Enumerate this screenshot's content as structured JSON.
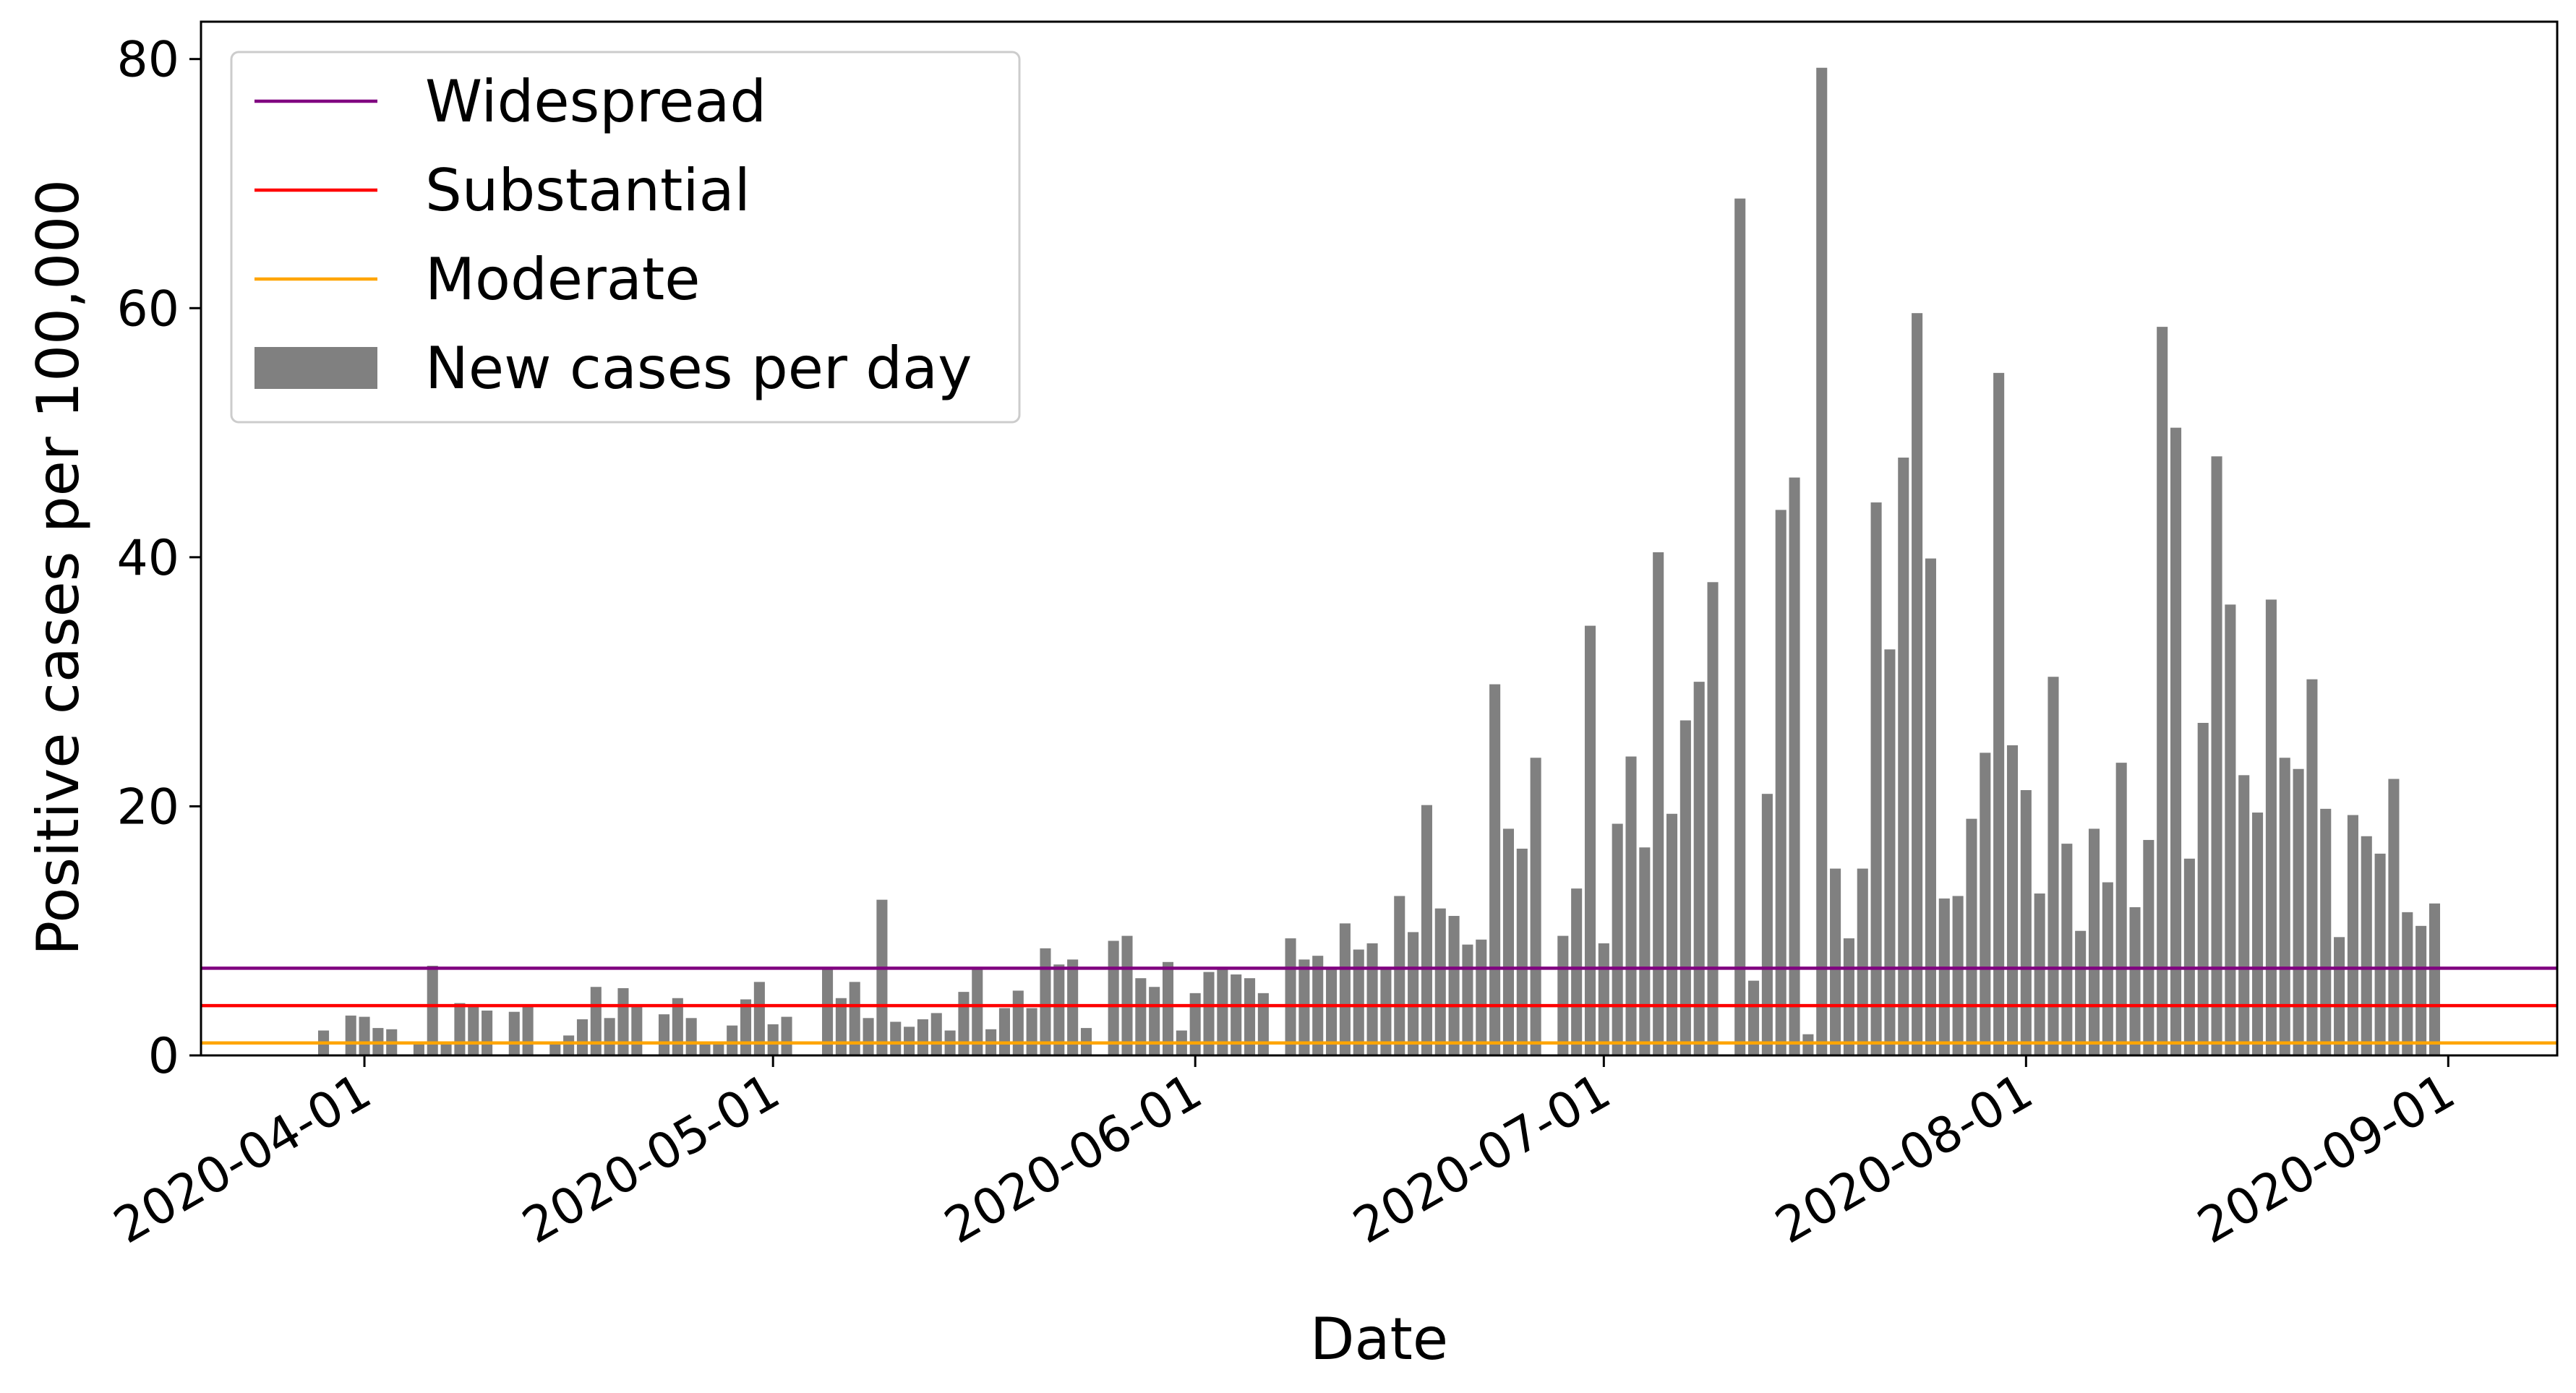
{
  "chart_data": {
    "type": "bar",
    "xlabel": "Date",
    "ylabel": "Positive cases per 100,000",
    "xlim": [
      "2020-03-20",
      "2020-09-09"
    ],
    "ylim": [
      0,
      83
    ],
    "x_ticks": [
      "2020-04-01",
      "2020-05-01",
      "2020-06-01",
      "2020-07-01",
      "2020-08-01",
      "2020-09-01"
    ],
    "y_ticks": [
      0,
      20,
      40,
      60,
      80
    ],
    "grid": false,
    "legend_position": "top-left",
    "series": [
      {
        "name": "New cases per day",
        "type": "bar",
        "color": "#808080",
        "points": [
          [
            "2020-03-29",
            2.0
          ],
          [
            "2020-03-31",
            3.2
          ],
          [
            "2020-04-01",
            3.1
          ],
          [
            "2020-04-02",
            2.2
          ],
          [
            "2020-04-03",
            2.1
          ],
          [
            "2020-04-05",
            0.9
          ],
          [
            "2020-04-06",
            7.2
          ],
          [
            "2020-04-07",
            1.1
          ],
          [
            "2020-04-08",
            4.2
          ],
          [
            "2020-04-09",
            4.0
          ],
          [
            "2020-04-10",
            3.6
          ],
          [
            "2020-04-12",
            3.5
          ],
          [
            "2020-04-13",
            3.9
          ],
          [
            "2020-04-15",
            0.9
          ],
          [
            "2020-04-16",
            1.6
          ],
          [
            "2020-04-17",
            2.9
          ],
          [
            "2020-04-18",
            5.5
          ],
          [
            "2020-04-19",
            3.0
          ],
          [
            "2020-04-20",
            5.4
          ],
          [
            "2020-04-21",
            3.9
          ],
          [
            "2020-04-23",
            3.3
          ],
          [
            "2020-04-24",
            4.6
          ],
          [
            "2020-04-25",
            3.0
          ],
          [
            "2020-04-26",
            1.0
          ],
          [
            "2020-04-27",
            1.0
          ],
          [
            "2020-04-28",
            2.4
          ],
          [
            "2020-04-29",
            4.5
          ],
          [
            "2020-04-30",
            5.9
          ],
          [
            "2020-05-01",
            2.5
          ],
          [
            "2020-05-02",
            3.1
          ],
          [
            "2020-05-05",
            6.9
          ],
          [
            "2020-05-06",
            4.6
          ],
          [
            "2020-05-07",
            5.9
          ],
          [
            "2020-05-08",
            3.0
          ],
          [
            "2020-05-09",
            12.5
          ],
          [
            "2020-05-10",
            2.7
          ],
          [
            "2020-05-11",
            2.3
          ],
          [
            "2020-05-12",
            2.9
          ],
          [
            "2020-05-13",
            3.4
          ],
          [
            "2020-05-14",
            2.0
          ],
          [
            "2020-05-15",
            5.1
          ],
          [
            "2020-05-16",
            7.0
          ],
          [
            "2020-05-17",
            2.1
          ],
          [
            "2020-05-18",
            3.8
          ],
          [
            "2020-05-19",
            5.2
          ],
          [
            "2020-05-20",
            3.8
          ],
          [
            "2020-05-21",
            8.6
          ],
          [
            "2020-05-22",
            7.3
          ],
          [
            "2020-05-23",
            7.7
          ],
          [
            "2020-05-24",
            2.2
          ],
          [
            "2020-05-26",
            9.2
          ],
          [
            "2020-05-27",
            9.6
          ],
          [
            "2020-05-28",
            6.2
          ],
          [
            "2020-05-29",
            5.5
          ],
          [
            "2020-05-30",
            7.5
          ],
          [
            "2020-05-31",
            2.0
          ],
          [
            "2020-06-01",
            5.0
          ],
          [
            "2020-06-02",
            6.7
          ],
          [
            "2020-06-03",
            6.9
          ],
          [
            "2020-06-04",
            6.5
          ],
          [
            "2020-06-05",
            6.2
          ],
          [
            "2020-06-06",
            5.0
          ],
          [
            "2020-06-08",
            9.4
          ],
          [
            "2020-06-09",
            7.7
          ],
          [
            "2020-06-10",
            8.0
          ],
          [
            "2020-06-11",
            7.0
          ],
          [
            "2020-06-12",
            10.6
          ],
          [
            "2020-06-13",
            8.5
          ],
          [
            "2020-06-14",
            9.0
          ],
          [
            "2020-06-15",
            7.0
          ],
          [
            "2020-06-16",
            12.8
          ],
          [
            "2020-06-17",
            9.9
          ],
          [
            "2020-06-18",
            20.1
          ],
          [
            "2020-06-19",
            11.8
          ],
          [
            "2020-06-20",
            11.2
          ],
          [
            "2020-06-21",
            8.9
          ],
          [
            "2020-06-22",
            9.3
          ],
          [
            "2020-06-23",
            29.8
          ],
          [
            "2020-06-24",
            18.2
          ],
          [
            "2020-06-25",
            16.6
          ],
          [
            "2020-06-26",
            23.9
          ],
          [
            "2020-06-28",
            9.6
          ],
          [
            "2020-06-29",
            13.4
          ],
          [
            "2020-06-30",
            34.5
          ],
          [
            "2020-07-01",
            9.0
          ],
          [
            "2020-07-02",
            18.6
          ],
          [
            "2020-07-03",
            24.0
          ],
          [
            "2020-07-04",
            16.7
          ],
          [
            "2020-07-05",
            40.4
          ],
          [
            "2020-07-06",
            19.4
          ],
          [
            "2020-07-07",
            26.9
          ],
          [
            "2020-07-08",
            30.0
          ],
          [
            "2020-07-09",
            38.0
          ],
          [
            "2020-07-11",
            68.8
          ],
          [
            "2020-07-12",
            6.0
          ],
          [
            "2020-07-13",
            21.0
          ],
          [
            "2020-07-14",
            43.8
          ],
          [
            "2020-07-15",
            46.4
          ],
          [
            "2020-07-16",
            1.7
          ],
          [
            "2020-07-17",
            79.3
          ],
          [
            "2020-07-18",
            15.0
          ],
          [
            "2020-07-19",
            9.4
          ],
          [
            "2020-07-20",
            15.0
          ],
          [
            "2020-07-21",
            44.4
          ],
          [
            "2020-07-22",
            32.6
          ],
          [
            "2020-07-23",
            48.0
          ],
          [
            "2020-07-24",
            59.6
          ],
          [
            "2020-07-25",
            39.9
          ],
          [
            "2020-07-26",
            12.6
          ],
          [
            "2020-07-27",
            12.8
          ],
          [
            "2020-07-28",
            19.0
          ],
          [
            "2020-07-29",
            24.3
          ],
          [
            "2020-07-30",
            54.8
          ],
          [
            "2020-07-31",
            24.9
          ],
          [
            "2020-08-01",
            21.3
          ],
          [
            "2020-08-02",
            13.0
          ],
          [
            "2020-08-03",
            30.4
          ],
          [
            "2020-08-04",
            17.0
          ],
          [
            "2020-08-05",
            10.0
          ],
          [
            "2020-08-06",
            18.2
          ],
          [
            "2020-08-07",
            13.9
          ],
          [
            "2020-08-08",
            23.5
          ],
          [
            "2020-08-09",
            11.9
          ],
          [
            "2020-08-10",
            17.3
          ],
          [
            "2020-08-11",
            58.5
          ],
          [
            "2020-08-12",
            50.4
          ],
          [
            "2020-08-13",
            15.8
          ],
          [
            "2020-08-14",
            26.7
          ],
          [
            "2020-08-15",
            48.1
          ],
          [
            "2020-08-16",
            36.2
          ],
          [
            "2020-08-17",
            22.5
          ],
          [
            "2020-08-18",
            19.5
          ],
          [
            "2020-08-19",
            36.6
          ],
          [
            "2020-08-20",
            23.9
          ],
          [
            "2020-08-21",
            23.0
          ],
          [
            "2020-08-22",
            30.2
          ],
          [
            "2020-08-23",
            19.8
          ],
          [
            "2020-08-24",
            9.5
          ],
          [
            "2020-08-25",
            19.3
          ],
          [
            "2020-08-26",
            17.6
          ],
          [
            "2020-08-27",
            16.2
          ],
          [
            "2020-08-28",
            22.2
          ],
          [
            "2020-08-29",
            11.5
          ],
          [
            "2020-08-30",
            10.4
          ],
          [
            "2020-08-31",
            12.2
          ]
        ]
      },
      {
        "name": "Widespread",
        "type": "hline",
        "color": "#800080",
        "y": 7.0
      },
      {
        "name": "Substantial",
        "type": "hline",
        "color": "#ff0000",
        "y": 4.0
      },
      {
        "name": "Moderate",
        "type": "hline",
        "color": "#ffa500",
        "y": 1.0
      }
    ],
    "legend": [
      "Widespread",
      "Substantial",
      "Moderate",
      "New cases per day"
    ]
  }
}
